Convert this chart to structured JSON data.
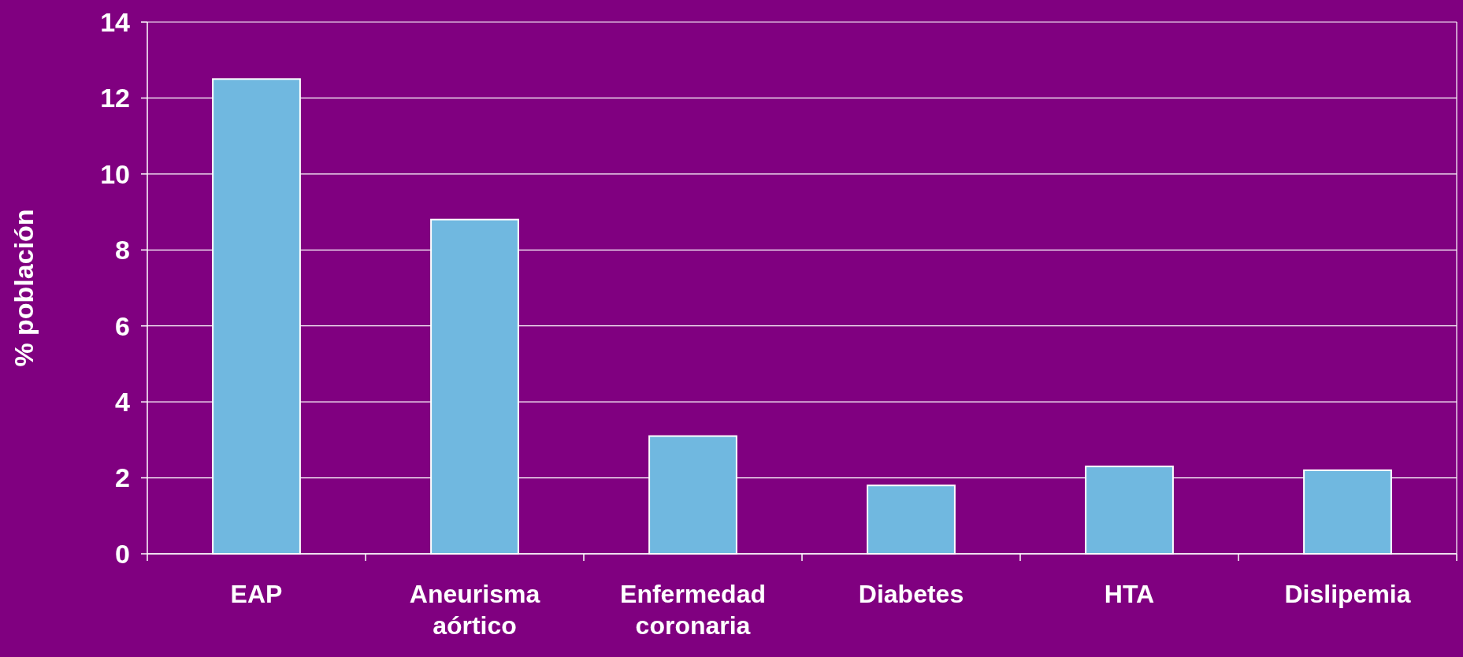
{
  "chart_data": {
    "type": "bar",
    "ylabel": "% población",
    "categories": [
      "EAP",
      "Aneurisma aórtico",
      "Enfermedad coronaria",
      "Diabetes",
      "HTA",
      "Dislipemia"
    ],
    "values": [
      12.5,
      8.8,
      3.1,
      1.8,
      2.3,
      2.2
    ],
    "color": "#70b8e0",
    "ylim": [
      0,
      14
    ],
    "yticks": [
      0,
      2,
      4,
      6,
      8,
      10,
      12,
      14
    ],
    "grid": "y"
  }
}
